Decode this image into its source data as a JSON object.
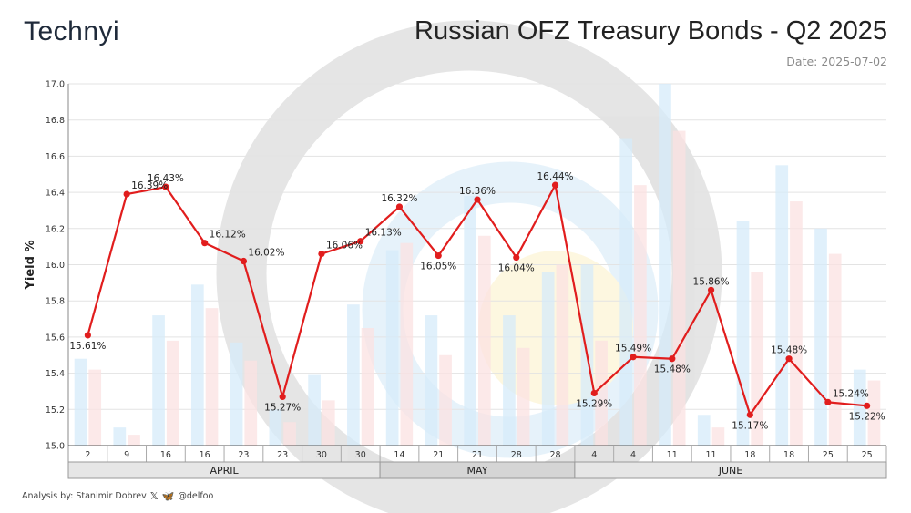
{
  "header": {
    "logo_text": "Technyi",
    "title": "Russian OFZ Treasury Bonds - Q2 2025",
    "date": "Date: 2025-07-02"
  },
  "footer": {
    "analysis": "Analysis by: Stanimir Dobrev",
    "icons": "x-icon butterfly-icon",
    "handle": "@delfoo"
  },
  "chart_data": {
    "type": "line",
    "ylabel": "Yield %",
    "xlabel": "",
    "ylim": [
      15.0,
      17.0
    ],
    "yticks": [
      "15.0",
      "15.2",
      "15.4",
      "15.6",
      "15.8",
      "16.0",
      "16.2",
      "16.4",
      "16.6",
      "16.8",
      "17.0"
    ],
    "grid": true,
    "categories": [
      "2",
      "9",
      "16",
      "16",
      "23",
      "23",
      "30",
      "30",
      "14",
      "21",
      "21",
      "28",
      "28",
      "4",
      "4",
      "11",
      "11",
      "18",
      "18",
      "25",
      "25"
    ],
    "months": [
      {
        "label": "APRIL",
        "count": 8
      },
      {
        "label": "MAY",
        "count": 5
      },
      {
        "label": "JUNE",
        "count": 8
      }
    ],
    "series": [
      {
        "color": "#e11d1d",
        "values": [
          15.61,
          16.39,
          16.43,
          16.12,
          16.02,
          15.27,
          16.06,
          16.13,
          16.32,
          16.05,
          16.36,
          16.04,
          16.44,
          15.29,
          15.49,
          15.48,
          15.86,
          15.17,
          15.48,
          15.24,
          15.22
        ],
        "labels": [
          "15.61%",
          "16.39%",
          "16.43%",
          "16.12%",
          "16.02%",
          "15.27%",
          "16.06%",
          "16.13%",
          "16.32%",
          "16.05%",
          "16.36%",
          "16.04%",
          "16.44%",
          "15.29%",
          "15.49%",
          "15.48%",
          "15.86%",
          "15.17%",
          "15.48%",
          "15.24%",
          "15.22%"
        ]
      }
    ],
    "background_bars": {
      "blue": [
        15.48,
        15.1,
        15.72,
        15.89,
        15.57,
        15.2,
        15.39,
        15.78,
        16.08,
        15.72,
        16.38,
        15.72,
        15.96,
        16.0,
        16.7,
        17.0,
        15.17,
        16.24,
        16.55,
        16.2,
        15.42
      ],
      "pink": [
        15.42,
        15.06,
        15.58,
        15.76,
        15.47,
        15.13,
        15.25,
        15.65,
        16.12,
        15.5,
        16.16,
        15.54,
        16.0,
        15.58,
        16.44,
        16.74,
        15.1,
        15.96,
        16.35,
        16.06,
        15.36
      ]
    },
    "colors": {
      "blue_bar": "#d6ebfa",
      "pink_bar": "#fbe2e2",
      "month_band": "#e6e6e6",
      "grid": "#e3e3e3"
    }
  }
}
